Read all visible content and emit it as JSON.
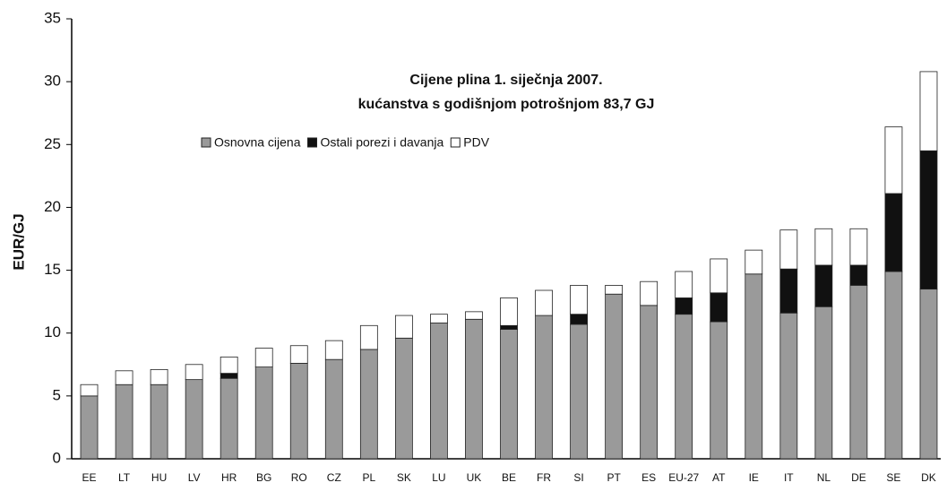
{
  "chart_data": {
    "type": "stacked_bar",
    "title": "Cijene plina 1. siječnja 2007.",
    "subtitle": "kućanstva s godišnjom potrošnjom  83,7 GJ",
    "ylabel": "EUR/GJ",
    "categories": [
      "EE",
      "LT",
      "HU",
      "LV",
      "HR",
      "BG",
      "RO",
      "CZ",
      "PL",
      "SK",
      "LU",
      "UK",
      "BE",
      "FR",
      "SI",
      "PT",
      "ES",
      "EU-27",
      "AT",
      "IE",
      "IT",
      "NL",
      "DE",
      "SE",
      "DK"
    ],
    "series": [
      {
        "name": "Osnovna cijena",
        "color": "#9a9a9a",
        "values": [
          5.0,
          5.9,
          5.9,
          6.3,
          6.4,
          7.3,
          7.6,
          7.9,
          8.7,
          9.6,
          10.8,
          11.1,
          10.3,
          11.4,
          10.7,
          13.1,
          12.2,
          11.5,
          10.9,
          14.7,
          11.6,
          12.1,
          13.8,
          14.9,
          13.5
        ]
      },
      {
        "name": "Ostali porezi i davanja",
        "color": "#111111",
        "values": [
          0,
          0,
          0,
          0,
          0.4,
          0,
          0,
          0,
          0,
          0,
          0,
          0,
          0.3,
          0,
          0.8,
          0,
          0,
          1.3,
          2.3,
          0,
          3.5,
          3.3,
          1.6,
          6.2,
          11.0
        ]
      },
      {
        "name": "PDV",
        "color": "#ffffff",
        "values": [
          0.9,
          1.1,
          1.2,
          1.2,
          1.3,
          1.5,
          1.4,
          1.5,
          1.9,
          1.8,
          0.7,
          0.6,
          2.2,
          2.0,
          2.3,
          0.7,
          1.9,
          2.1,
          2.7,
          1.9,
          3.1,
          2.9,
          2.9,
          5.3,
          6.3
        ]
      }
    ],
    "ylim": [
      0,
      35
    ],
    "yticks": [
      0,
      5,
      10,
      15,
      20,
      25,
      30,
      35
    ],
    "grid": false
  }
}
